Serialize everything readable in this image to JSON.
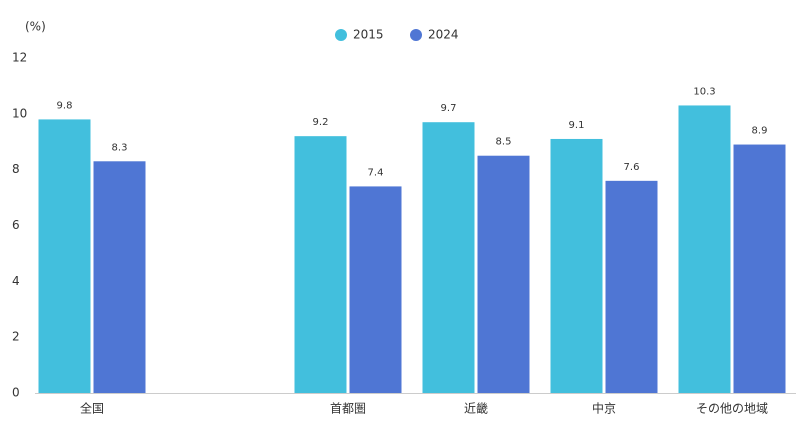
{
  "chart_data": {
    "type": "bar",
    "y_axis_label": "(%)",
    "categories": [
      "全国",
      null,
      "首都圏",
      "近畿",
      "中京",
      "その他の地域"
    ],
    "series": [
      {
        "name": "2015",
        "color": "#42bfdd",
        "values": [
          9.8,
          null,
          9.2,
          9.7,
          9.1,
          10.3
        ]
      },
      {
        "name": "2024",
        "color": "#4f76d4",
        "values": [
          8.3,
          null,
          7.4,
          8.5,
          7.6,
          8.9
        ]
      }
    ],
    "ylim": [
      0,
      12
    ],
    "yticks": [
      0,
      2,
      4,
      6,
      8,
      10,
      12
    ],
    "grid": false,
    "legend": "top"
  }
}
